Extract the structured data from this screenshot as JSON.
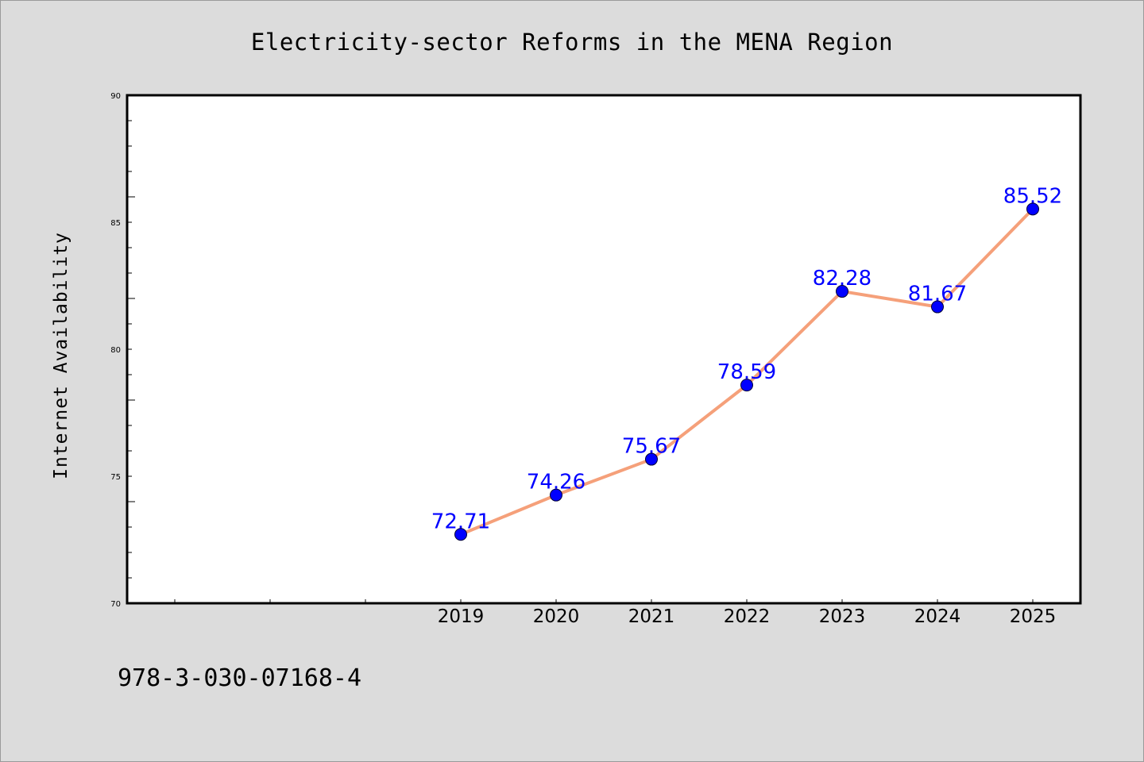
{
  "chart_data": {
    "type": "line",
    "title": "Electricity-sector Reforms in the MENA Region",
    "xlabel": "",
    "ylabel": "Internet Availability",
    "x": [
      "2019",
      "2020",
      "2021",
      "2022",
      "2023",
      "2024",
      "2025"
    ],
    "series": [
      {
        "values": [
          72.71,
          74.26,
          75.67,
          78.59,
          82.28,
          81.67,
          85.52
        ],
        "data_labels": [
          "72.71",
          "74.26",
          "75.67",
          "78.59",
          "82.28",
          "81.67",
          "85.52"
        ],
        "line_color": "#f5a07a",
        "marker_color": "#0000ff"
      }
    ],
    "xlim_years": [
      2015.5,
      2025.5
    ],
    "ylim": [
      70,
      90
    ],
    "yticks": [
      "70",
      "75",
      "80",
      "85",
      "90"
    ],
    "grid": false,
    "legend": "none"
  },
  "footnote": "978-3-030-07168-4",
  "colors": {
    "background": "#dcdcdc",
    "plot_background": "#ffffff",
    "axes": "#000000"
  }
}
